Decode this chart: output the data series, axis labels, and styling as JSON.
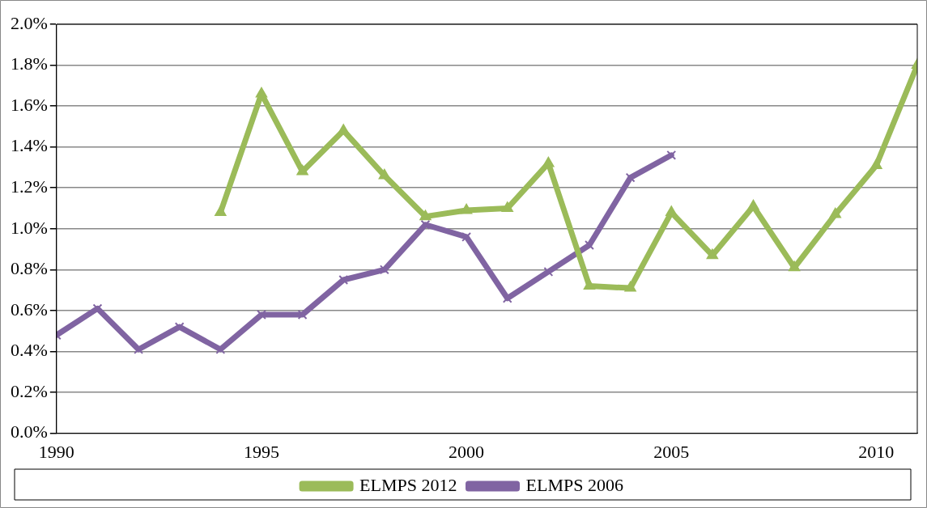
{
  "chart_data": {
    "type": "line",
    "series": [
      {
        "name": "ELMPS 2012",
        "color": "#9bbb59",
        "marker": "triangle",
        "x": [
          1994,
          1995,
          1996,
          1997,
          1998,
          1999,
          2000,
          2001,
          2002,
          2003,
          2004,
          2005,
          2006,
          2007,
          2008,
          2009,
          2010,
          2011
        ],
        "values": [
          1.08,
          1.66,
          1.28,
          1.48,
          1.26,
          1.06,
          1.09,
          1.1,
          1.32,
          0.72,
          0.71,
          1.08,
          0.87,
          1.11,
          0.81,
          1.07,
          1.31,
          1.8
        ]
      },
      {
        "name": "ELMPS 2006",
        "color": "#8064a2",
        "marker": "cross",
        "x": [
          1990,
          1991,
          1992,
          1993,
          1994,
          1995,
          1996,
          1997,
          1998,
          1999,
          2000,
          2001,
          2002,
          2003,
          2004,
          2005
        ],
        "values": [
          0.48,
          0.61,
          0.41,
          0.52,
          0.41,
          0.58,
          0.58,
          0.75,
          0.8,
          1.02,
          0.96,
          0.66,
          0.79,
          0.92,
          1.25,
          1.36
        ]
      }
    ],
    "xlim": [
      1990,
      2011
    ],
    "xticks": [
      1990,
      1995,
      2000,
      2005,
      2010
    ],
    "ylim": [
      0,
      2
    ],
    "yticks": [
      {
        "value": 0,
        "label": "0.0%"
      },
      {
        "value": 0.2,
        "label": "0.2%"
      },
      {
        "value": 0.4,
        "label": "0.4%"
      },
      {
        "value": 0.6,
        "label": "0.6%"
      },
      {
        "value": 0.8,
        "label": "0.8%"
      },
      {
        "value": 1.0,
        "label": "1.0%"
      },
      {
        "value": 1.2,
        "label": "1.2%"
      },
      {
        "value": 1.4,
        "label": "1.4%"
      },
      {
        "value": 1.6,
        "label": "1.6%"
      },
      {
        "value": 1.8,
        "label": "1.8%"
      },
      {
        "value": 2.0,
        "label": "2.0%"
      }
    ],
    "grid": "y",
    "legend": "bottom",
    "line_style": "solid"
  }
}
